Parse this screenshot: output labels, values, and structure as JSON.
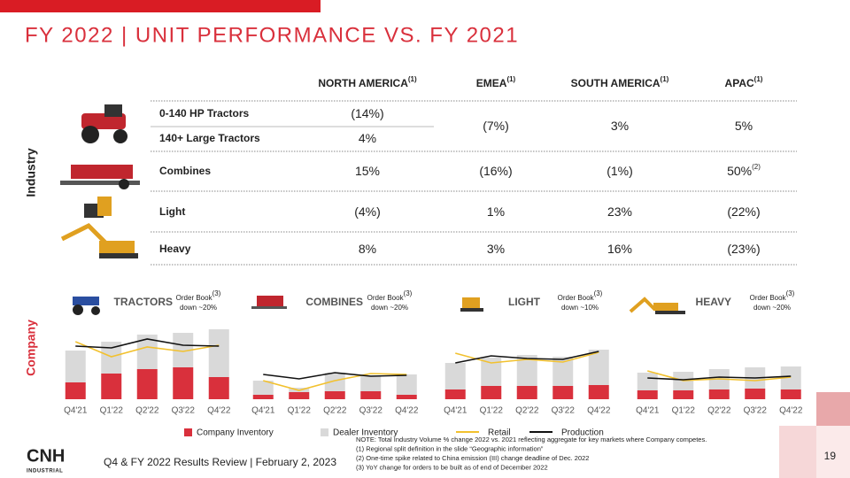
{
  "title": "FY 2022 | UNIT PERFORMANCE VS. FY 2021",
  "industry_label": "Industry",
  "company_label": "Company",
  "table": {
    "columns": [
      {
        "name": "NORTH AMERICA",
        "note": "(1)"
      },
      {
        "name": "EMEA",
        "note": "(1)"
      },
      {
        "name": "SOUTH AMERICA",
        "note": "(1)"
      },
      {
        "name": "APAC",
        "note": "(1)"
      }
    ],
    "rows": [
      {
        "label": "0-140 HP Tractors",
        "cells": [
          {
            "text": "(14%)"
          },
          {
            "text": "(7%)"
          },
          {
            "text": "3%"
          },
          {
            "text": "5%"
          }
        ]
      },
      {
        "label": "140+ Large Tractors",
        "cells": [
          {
            "text": "4%"
          }
        ]
      },
      {
        "label": "Combines",
        "cells": [
          {
            "text": "15%"
          },
          {
            "text": "(16%)"
          },
          {
            "text": "(1%)"
          },
          {
            "text": "50%",
            "note": "(2)"
          }
        ]
      },
      {
        "label": "Light",
        "cells": [
          {
            "text": "(4%)"
          },
          {
            "text": "1%"
          },
          {
            "text": "23%"
          },
          {
            "text": "(22%)"
          }
        ]
      },
      {
        "label": "Heavy",
        "cells": [
          {
            "text": "8%"
          },
          {
            "text": "3%"
          },
          {
            "text": "16%"
          },
          {
            "text": "(23%)"
          }
        ]
      }
    ]
  },
  "legend": [
    {
      "name": "Company Inventory",
      "color": "#d9303c",
      "type": "bar"
    },
    {
      "name": "Dealer Inventory",
      "color": "#d9d9d9",
      "type": "bar"
    },
    {
      "name": "Retail",
      "color": "#f2c12e",
      "type": "line"
    },
    {
      "name": "Production",
      "color": "#111111",
      "type": "line"
    }
  ],
  "chart_data": [
    {
      "type": "bar",
      "label": "TRACTORS",
      "order_book": "Order Book",
      "order_book_note": "(3)",
      "order_book_value": "down ~20%",
      "ylim": [
        0,
        90
      ],
      "categories": [
        "Q4'21",
        "Q1'22",
        "Q2'22",
        "Q3'22",
        "Q4'22"
      ],
      "series": [
        {
          "values": [
            19,
            29,
            34,
            36,
            25
          ]
        },
        {
          "values": [
            36,
            36,
            39,
            39,
            54
          ]
        },
        {
          "values": [
            65,
            48,
            59,
            54,
            61
          ]
        },
        {
          "values": [
            60,
            58,
            68,
            61,
            60
          ]
        }
      ]
    },
    {
      "type": "bar",
      "label": "COMBINES",
      "order_book": "Order Book",
      "order_book_note": "(3)",
      "order_book_value": "down ~20%",
      "ylim": [
        0,
        90
      ],
      "categories": [
        "Q4'21",
        "Q1'22",
        "Q2'22",
        "Q3'22",
        "Q4'22"
      ],
      "series": [
        {
          "values": [
            5,
            8,
            9,
            9,
            5
          ]
        },
        {
          "values": [
            16,
            5,
            21,
            18,
            23
          ]
        },
        {
          "values": [
            21,
            10,
            21,
            29,
            28
          ]
        },
        {
          "values": [
            28,
            23,
            30,
            26,
            27
          ]
        }
      ]
    },
    {
      "type": "bar",
      "label": "LIGHT",
      "order_book": "Order Book",
      "order_book_note": "(3)",
      "order_book_value": "down ~10%",
      "ylim": [
        0,
        90
      ],
      "categories": [
        "Q4'21",
        "Q1'22",
        "Q2'22",
        "Q3'22",
        "Q4'22"
      ],
      "series": [
        {
          "values": [
            11,
            15,
            15,
            15,
            16
          ]
        },
        {
          "values": [
            30,
            32,
            35,
            33,
            40
          ]
        },
        {
          "values": [
            52,
            41,
            45,
            42,
            53
          ]
        },
        {
          "values": [
            41,
            49,
            46,
            45,
            54
          ]
        }
      ]
    },
    {
      "type": "bar",
      "label": "HEAVY",
      "order_book": "Order Book",
      "order_book_note": "(3)",
      "order_book_value": "down ~20%",
      "ylim": [
        0,
        90
      ],
      "categories": [
        "Q4'21",
        "Q1'22",
        "Q2'22",
        "Q3'22",
        "Q4'22"
      ],
      "series": [
        {
          "values": [
            10,
            10,
            11,
            12,
            11
          ]
        },
        {
          "values": [
            20,
            21,
            23,
            24,
            26
          ]
        },
        {
          "values": [
            32,
            21,
            23,
            21,
            25
          ]
        },
        {
          "values": [
            24,
            22,
            25,
            24,
            26
          ]
        }
      ]
    }
  ],
  "notes": [
    "NOTE: Total Industry Volume % change 2022 vs. 2021 reflecting aggregate for key markets where Company competes.",
    "(1) Regional split definition in the slide “Geographic information”",
    "(2) One-time spike related to China emission (III) change deadline of Dec. 2022",
    "(3) YoY change for orders to be built as of end of December 2022"
  ],
  "footer": "Q4 & FY 2022 Results Review | February 2, 2023",
  "logo": "CNH",
  "logo_sub": "INDUSTRIAL",
  "page_number": "19"
}
